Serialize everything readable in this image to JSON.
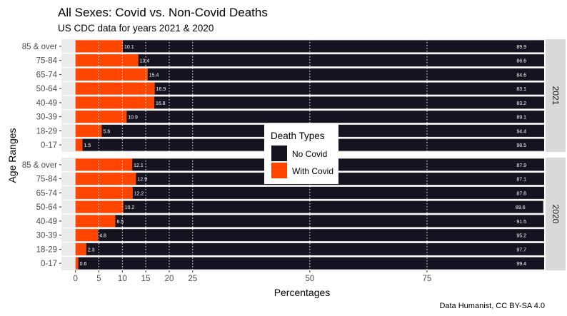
{
  "chart_data": {
    "type": "bar",
    "orientation": "horizontal",
    "stacked": true,
    "title": "All Sexes: Covid vs. Non-Covid Deaths",
    "subtitle": "US CDC data for years 2021 & 2020",
    "xlabel": "Percentages",
    "ylabel": "Age Ranges",
    "caption": "Data Humanist, CC BY-SA 4.0",
    "xlim": [
      -3,
      100
    ],
    "x_ticks": [
      0,
      5,
      10,
      15,
      20,
      25,
      50,
      75
    ],
    "categories": [
      "85 & over",
      "75-84",
      "65-74",
      "50-64",
      "40-49",
      "30-39",
      "18-29",
      "0-17"
    ],
    "legend": {
      "title": "Death Types",
      "items": [
        {
          "label": "No Covid",
          "color": "#14131f"
        },
        {
          "label": "With Covid",
          "color": "#ff4500"
        }
      ]
    },
    "facets": [
      {
        "label": "2021",
        "with_covid": [
          10.1,
          13.4,
          15.4,
          16.9,
          16.8,
          10.9,
          5.6,
          1.5
        ],
        "no_covid": [
          89.9,
          86.6,
          84.6,
          83.1,
          83.2,
          89.1,
          94.4,
          98.5
        ]
      },
      {
        "label": "2020",
        "with_covid": [
          12.1,
          12.9,
          12.2,
          10.2,
          8.5,
          4.8,
          2.3,
          0.6
        ],
        "no_covid": [
          87.9,
          87.1,
          87.8,
          89.6,
          91.5,
          95.2,
          97.7,
          99.4
        ]
      }
    ],
    "grid": "vertical-dotted"
  }
}
